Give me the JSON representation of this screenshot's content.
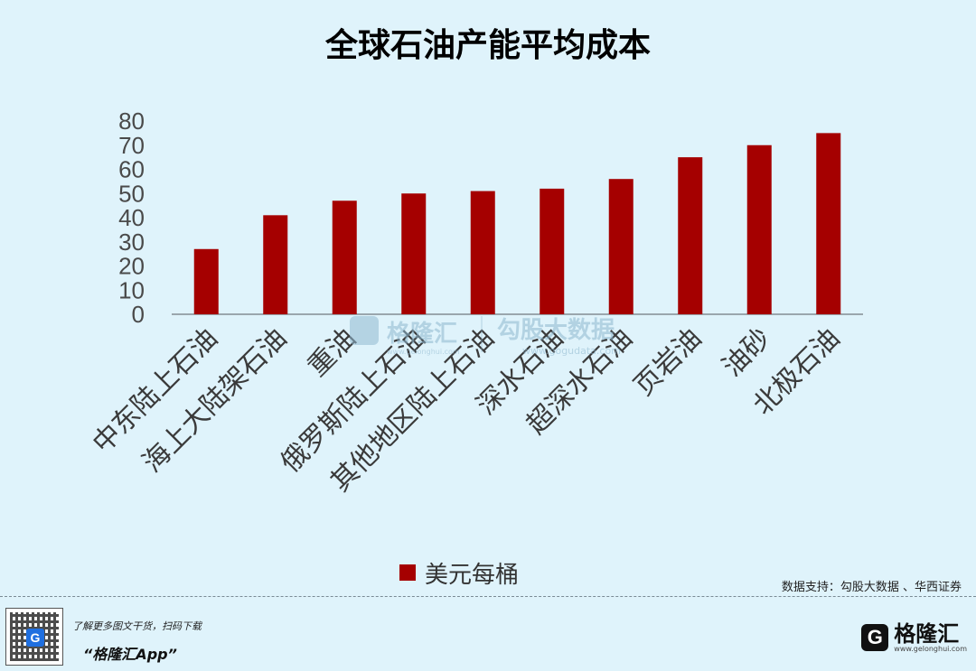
{
  "chart_data": {
    "type": "bar",
    "title": "全球石油产能平均成本",
    "categories": [
      "中东陆上石油",
      "海上大陆架石油",
      "重油",
      "俄罗斯陆上石油",
      "其他地区陆上石油",
      "深水石油",
      "超深水石油",
      "页岩油",
      "油砂",
      "北极石油"
    ],
    "values": [
      27,
      41,
      47,
      50,
      51,
      52,
      56,
      65,
      70,
      75
    ],
    "ylim": [
      0,
      80
    ],
    "yticks": [
      0,
      10,
      20,
      30,
      40,
      50,
      60,
      70,
      80
    ],
    "xlabel": "",
    "ylabel": "",
    "legend": {
      "label": "美元每桶",
      "position": "bottom"
    },
    "bar_color": "#a50000",
    "grid": false
  },
  "source": "数据支持：勾股大数据 、华西证券",
  "watermark": {
    "brand": "格隆汇",
    "brand_url": "www.gelonghui.com",
    "partner": "勾股大数据",
    "partner_url": "www.gogudata.com"
  },
  "footer": {
    "promo_line": "了解更多图文干货，扫码下载",
    "app_name": "“格隆汇App”",
    "brand_name": "格隆汇",
    "brand_url": "www.gelonghui.com"
  },
  "colors": {
    "background": "#dff3fb",
    "bar": "#a50000",
    "axis": "#9aa6ad"
  }
}
